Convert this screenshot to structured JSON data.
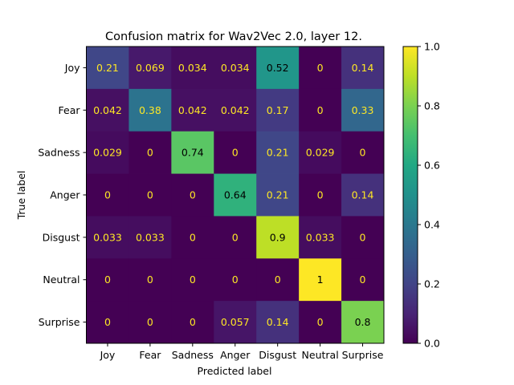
{
  "chart_data": {
    "type": "heatmap",
    "title": "Confusion matrix for Wav2Vec 2.0, layer 12.",
    "xlabel": "Predicted label",
    "ylabel": "True label",
    "x_categories": [
      "Joy",
      "Fear",
      "Sadness",
      "Anger",
      "Disgust",
      "Neutral",
      "Surprise"
    ],
    "y_categories": [
      "Joy",
      "Fear",
      "Sadness",
      "Anger",
      "Disgust",
      "Neutral",
      "Surprise"
    ],
    "values": [
      [
        0.21,
        0.069,
        0.034,
        0.034,
        0.52,
        0,
        0.14
      ],
      [
        0.042,
        0.38,
        0.042,
        0.042,
        0.17,
        0,
        0.33
      ],
      [
        0.029,
        0,
        0.74,
        0,
        0.21,
        0.029,
        0
      ],
      [
        0,
        0,
        0,
        0.64,
        0.21,
        0,
        0.14
      ],
      [
        0.033,
        0.033,
        0,
        0,
        0.9,
        0.033,
        0
      ],
      [
        0,
        0,
        0,
        0,
        0,
        1,
        0
      ],
      [
        0,
        0,
        0,
        0.057,
        0.14,
        0,
        0.8
      ]
    ],
    "value_labels": [
      [
        "0.21",
        "0.069",
        "0.034",
        "0.034",
        "0.52",
        "0",
        "0.14"
      ],
      [
        "0.042",
        "0.38",
        "0.042",
        "0.042",
        "0.17",
        "0",
        "0.33"
      ],
      [
        "0.029",
        "0",
        "0.74",
        "0",
        "0.21",
        "0.029",
        "0"
      ],
      [
        "0",
        "0",
        "0",
        "0.64",
        "0.21",
        "0",
        "0.14"
      ],
      [
        "0.033",
        "0.033",
        "0",
        "0",
        "0.9",
        "0.033",
        "0"
      ],
      [
        "0",
        "0",
        "0",
        "0",
        "0",
        "1",
        "0"
      ],
      [
        "0",
        "0",
        "0",
        "0.057",
        "0.14",
        "0",
        "0.8"
      ]
    ],
    "colorbar": {
      "range": [
        0,
        1
      ],
      "ticks": [
        "0.0",
        "0.2",
        "0.4",
        "0.6",
        "0.8",
        "1.0"
      ],
      "colormap": "viridis"
    }
  }
}
